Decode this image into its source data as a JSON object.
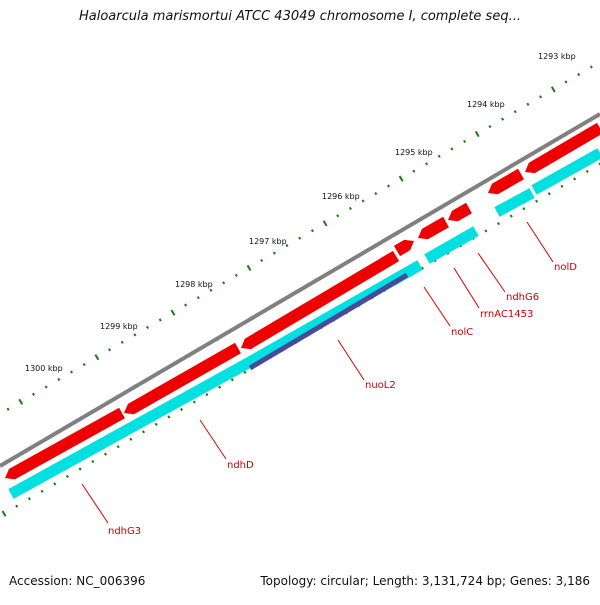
{
  "title": "Haloarcula marismortui ATCC 43049 chromosome I, complete seq...",
  "footer": {
    "accession": "Accession: NC_006396",
    "summary": "Topology: circular; Length: 3,131,724 bp; Genes: 3,186"
  },
  "colors": {
    "backbone": "#808080",
    "forward_feature": "#ee0000",
    "reverse_feature": "#00e0e0",
    "highlight_feature": "#4a4a9a",
    "tick": "#1a7a1a",
    "label_line": "#dd0000",
    "label_text": "#cc0000"
  },
  "ticks": [
    {
      "label": "1293 kbp"
    },
    {
      "label": "1294 kbp"
    },
    {
      "label": "1295 kbp"
    },
    {
      "label": "1296 kbp"
    },
    {
      "label": "1297 kbp"
    },
    {
      "label": "1298 kbp"
    },
    {
      "label": "1299 kbp"
    },
    {
      "label": "1300 kbp"
    }
  ],
  "gene_labels": [
    {
      "name": "nolD"
    },
    {
      "name": "ndhG6"
    },
    {
      "name": "rrnAC1453"
    },
    {
      "name": "nolC"
    },
    {
      "name": "nuoL2"
    },
    {
      "name": "ndhD"
    },
    {
      "name": "ndhG3"
    }
  ]
}
